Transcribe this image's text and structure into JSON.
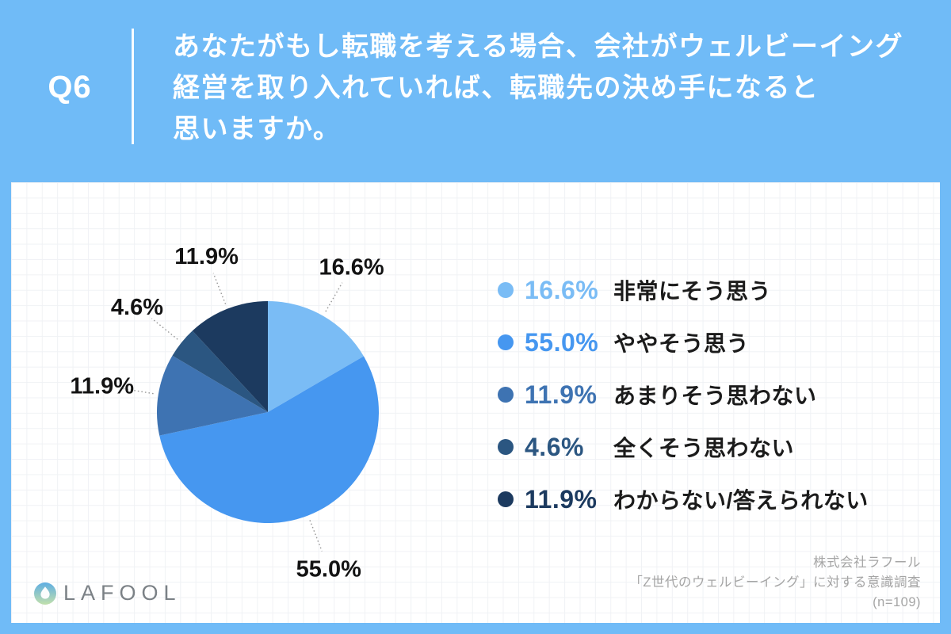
{
  "header": {
    "question_number": "Q6",
    "question_lines": [
      "あなたがもし転職を考える場合、会社がウェルビーイング",
      "経営を取り入れていれば、転職先の決め手になると",
      "思いますか。"
    ]
  },
  "chart_data": {
    "type": "pie",
    "title": "",
    "unit": "%",
    "start_angle_deg": 0,
    "direction": "clockwise",
    "data_labels": "outside, dotted leader lines",
    "legend_position": "right",
    "segments": [
      {
        "label": "非常にそう思う",
        "value": 16.6,
        "display": "16.6%",
        "color": "#7ABCF5"
      },
      {
        "label": "ややそう思う",
        "value": 55.0,
        "display": "55.0%",
        "color": "#4697F0"
      },
      {
        "label": "あまりそう思わない",
        "value": 11.9,
        "display": "11.9%",
        "color": "#3E73B2"
      },
      {
        "label": "全くそう思わない",
        "value": 4.6,
        "display": "4.6%",
        "color": "#2B5681"
      },
      {
        "label": "わからない/答えられない",
        "value": 11.9,
        "display": "11.9%",
        "color": "#1C3A5F"
      }
    ]
  },
  "footer": {
    "brand": "LAFOOL",
    "source_lines": [
      "株式会社ラフール",
      "「Z世代のウェルビーイング」に対する意識調査",
      "(n=109)"
    ]
  },
  "colors": {
    "background": "#70BBF7",
    "card": "#FFFFFF",
    "header_text": "#FFFFFF",
    "pie_label_text": "#131313",
    "leader_line": "#9A9A9A",
    "grid_line": "#F0F2F5",
    "legend_label_text": "#1B1B1B",
    "brand_text": "#7B8186",
    "source_text": "#A5A5A5",
    "logo_gradient_top": "#5FAEE3",
    "logo_gradient_bottom": "#C2E0AC"
  }
}
